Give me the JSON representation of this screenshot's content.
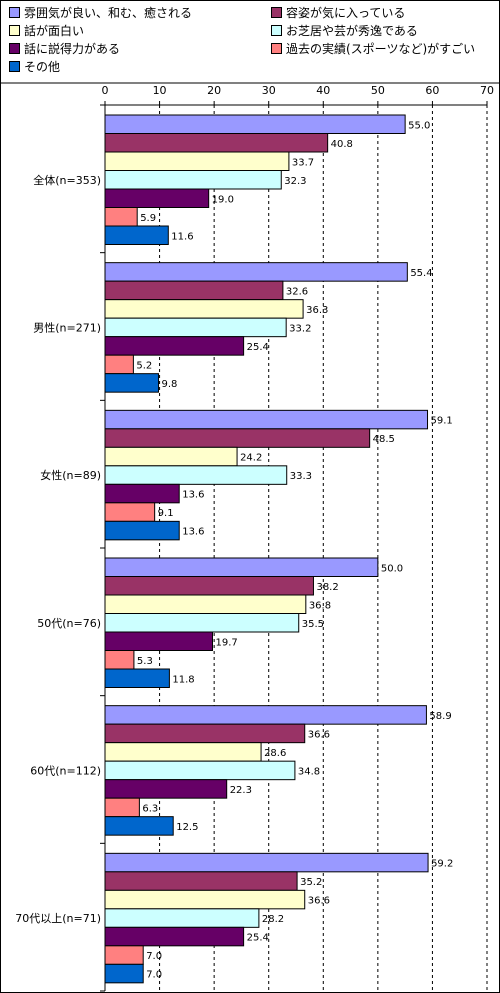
{
  "chart_data": {
    "type": "bar",
    "orientation": "horizontal",
    "categories": [
      "全体(n=353)",
      "男性(n=271)",
      "女性(n=89)",
      "50代(n=76)",
      "60代(n=112)",
      "70代以上(n=71)"
    ],
    "series": [
      {
        "name": "雰囲気が良い、和む、癒される",
        "color": "#9999ff",
        "values": [
          55.0,
          55.4,
          59.1,
          50.0,
          58.9,
          59.2
        ]
      },
      {
        "name": "容姿が気に入っている",
        "color": "#993366",
        "values": [
          40.8,
          32.6,
          48.5,
          38.2,
          36.6,
          35.2
        ]
      },
      {
        "name": "話が面白い",
        "color": "#ffffcc",
        "values": [
          33.7,
          36.3,
          24.2,
          36.8,
          28.6,
          36.6
        ]
      },
      {
        "name": "お芝居や芸が秀逸である",
        "color": "#ccffff",
        "values": [
          32.3,
          33.2,
          33.3,
          35.5,
          34.8,
          28.2
        ]
      },
      {
        "name": "話に説得力がある",
        "color": "#660066",
        "values": [
          19.0,
          25.4,
          13.6,
          19.7,
          22.3,
          25.4
        ]
      },
      {
        "name": "過去の実績(スポーツなど)がすごい",
        "color": "#ff8080",
        "values": [
          5.9,
          5.2,
          9.1,
          5.3,
          6.3,
          7.0
        ]
      },
      {
        "name": "その他",
        "color": "#0066cc",
        "values": [
          11.6,
          9.8,
          13.6,
          11.8,
          12.5,
          7.0
        ]
      }
    ],
    "value_labels": [
      [
        "55.0",
        "40.8",
        "33.7",
        "32.3",
        "19.0",
        "5.9",
        "11.6"
      ],
      [
        "55.4",
        "32.6",
        "36.3",
        "33.2",
        "25.4",
        "5.2",
        "9.8"
      ],
      [
        "59.1",
        "48.5",
        "24.2",
        "33.3",
        "13.6",
        "9.1",
        "13.6"
      ],
      [
        "50.0",
        "38.2",
        "36.8",
        "35.5",
        "19.7",
        "5.3",
        "11.8"
      ],
      [
        "58.9",
        "36.6",
        "28.6",
        "34.8",
        "22.3",
        "6.3",
        "12.5"
      ],
      [
        "59.2",
        "35.2",
        "36.6",
        "28.2",
        "25.4",
        "7.0",
        "7.0"
      ]
    ],
    "xlim": [
      0,
      70
    ],
    "x_ticks": [
      0,
      10,
      20,
      30,
      40,
      50,
      60,
      70
    ],
    "x_axis_position": "top",
    "grid": "vertical dashed",
    "legend_placement": "top"
  }
}
